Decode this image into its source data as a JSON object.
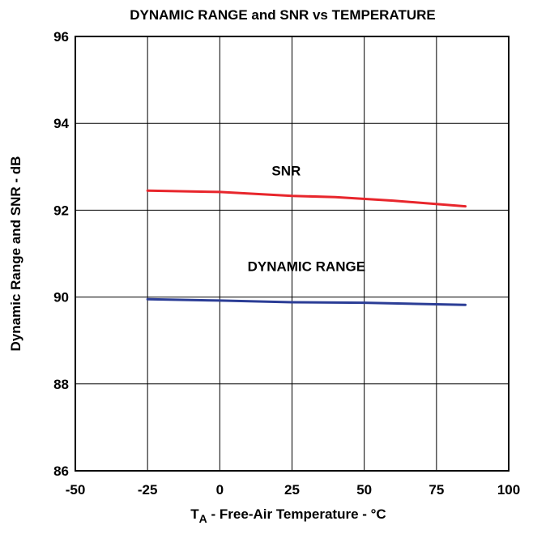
{
  "chart_data": {
    "type": "line",
    "title": "DYNAMIC RANGE and SNR vs TEMPERATURE",
    "xlabel_main": "T",
    "xlabel_sub": "A",
    "xlabel_rest": " - Free-Air Temperature - °C",
    "ylabel": "Dynamic Range and SNR - dB",
    "xlim": [
      -50,
      100
    ],
    "ylim": [
      86,
      96
    ],
    "xticks": [
      -50,
      -25,
      0,
      25,
      50,
      75,
      100
    ],
    "yticks": [
      86,
      88,
      90,
      92,
      94,
      96
    ],
    "grid": true,
    "series": [
      {
        "name": "SNR",
        "color": "#e8262c",
        "x": [
          -25,
          0,
          25,
          40,
          60,
          85
        ],
        "y": [
          92.45,
          92.42,
          92.33,
          92.3,
          92.22,
          92.09
        ]
      },
      {
        "name": "DYNAMIC RANGE",
        "color": "#2b3d96",
        "x": [
          -25,
          0,
          25,
          50,
          85
        ],
        "y": [
          89.95,
          89.92,
          89.88,
          89.87,
          89.82
        ]
      }
    ],
    "annotations": [
      {
        "text": "SNR",
        "x": 23,
        "y": 92.8
      },
      {
        "text": "DYNAMIC RANGE",
        "x": 30,
        "y": 90.6
      }
    ]
  }
}
